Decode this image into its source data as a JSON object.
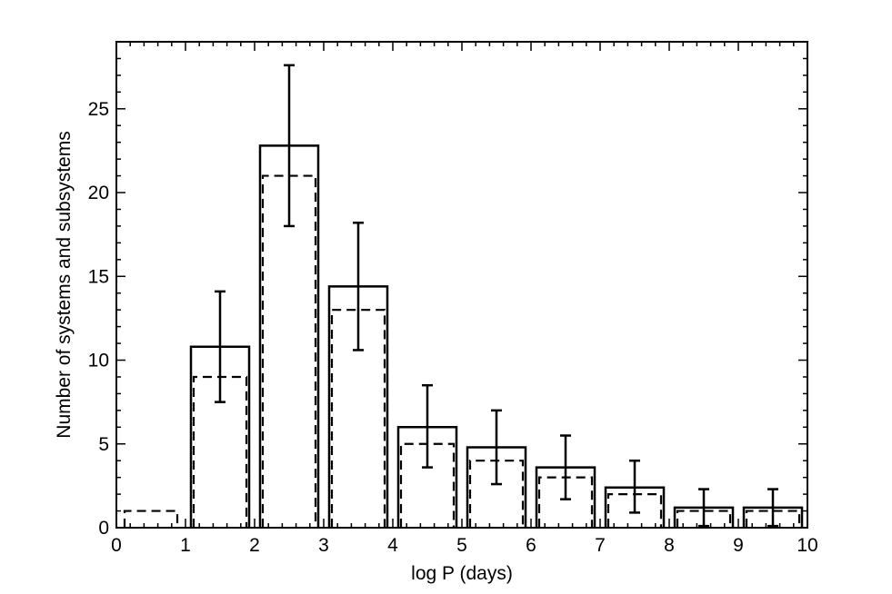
{
  "chart_data": {
    "type": "bar",
    "xlabel": "log P (days)",
    "ylabel": "Number of systems and subsystems",
    "xlim": [
      0,
      10
    ],
    "ylim": [
      0,
      29
    ],
    "x_ticks": [
      0,
      1,
      2,
      3,
      4,
      5,
      6,
      7,
      8,
      9,
      10
    ],
    "y_ticks": [
      0,
      5,
      10,
      15,
      20,
      25
    ],
    "bins": [
      {
        "x0": 0,
        "x1": 1
      },
      {
        "x0": 1,
        "x1": 2
      },
      {
        "x0": 2,
        "x1": 3
      },
      {
        "x0": 3,
        "x1": 4
      },
      {
        "x0": 4,
        "x1": 5
      },
      {
        "x0": 5,
        "x1": 6
      },
      {
        "x0": 6,
        "x1": 7
      },
      {
        "x0": 7,
        "x1": 8
      },
      {
        "x0": 8,
        "x1": 9
      },
      {
        "x0": 9,
        "x1": 10
      }
    ],
    "series": [
      {
        "style": "solid",
        "values": [
          0,
          10.8,
          22.8,
          14.4,
          6.0,
          4.8,
          3.6,
          2.4,
          1.2,
          1.2
        ],
        "error_low": [
          null,
          7.5,
          18.0,
          10.6,
          3.6,
          2.6,
          1.7,
          0.9,
          0.1,
          0.1
        ],
        "error_high": [
          null,
          14.1,
          27.6,
          18.2,
          8.5,
          7.0,
          5.5,
          4.0,
          2.3,
          2.3
        ]
      },
      {
        "style": "dashed",
        "values": [
          1,
          9,
          21,
          13,
          5,
          4,
          3,
          2,
          1,
          1
        ]
      }
    ],
    "colors": {
      "line": "#000000",
      "background": "#ffffff"
    },
    "grid": false,
    "legend": "none"
  }
}
